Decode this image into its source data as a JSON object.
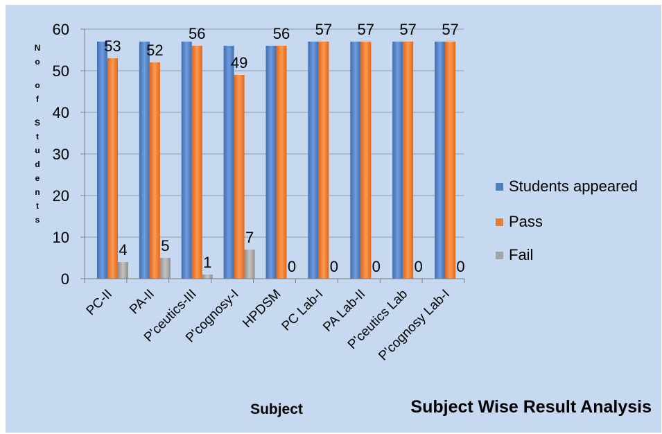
{
  "chart_data": {
    "type": "bar",
    "title": "Subject Wise Result Analysis",
    "xlabel": "Subject",
    "ylabel": "No of Students",
    "ylim": [
      0,
      60
    ],
    "yticks": [
      0,
      10,
      20,
      30,
      40,
      50,
      60
    ],
    "grid": true,
    "legend_position": "right",
    "categories": [
      "PC-II",
      "PA-II",
      "P'ceutics-III",
      "P'cognosy-I",
      "HPDSM",
      "PC Lab-I",
      "PA Lab-II",
      "P'ceutics Lab",
      "P'cognosy Lab-I"
    ],
    "series": [
      {
        "name": "Students appeared",
        "color": "#4f81bd",
        "values": [
          57,
          57,
          57,
          56,
          56,
          57,
          57,
          57,
          57
        ],
        "labeled": false
      },
      {
        "name": "Pass",
        "color": "#f07b29",
        "values": [
          53,
          52,
          56,
          49,
          56,
          57,
          57,
          57,
          57
        ],
        "labeled": true
      },
      {
        "name": "Fail",
        "color": "#a5a5a5",
        "values": [
          4,
          5,
          1,
          7,
          0,
          0,
          0,
          0,
          0
        ],
        "labeled": true
      }
    ]
  }
}
